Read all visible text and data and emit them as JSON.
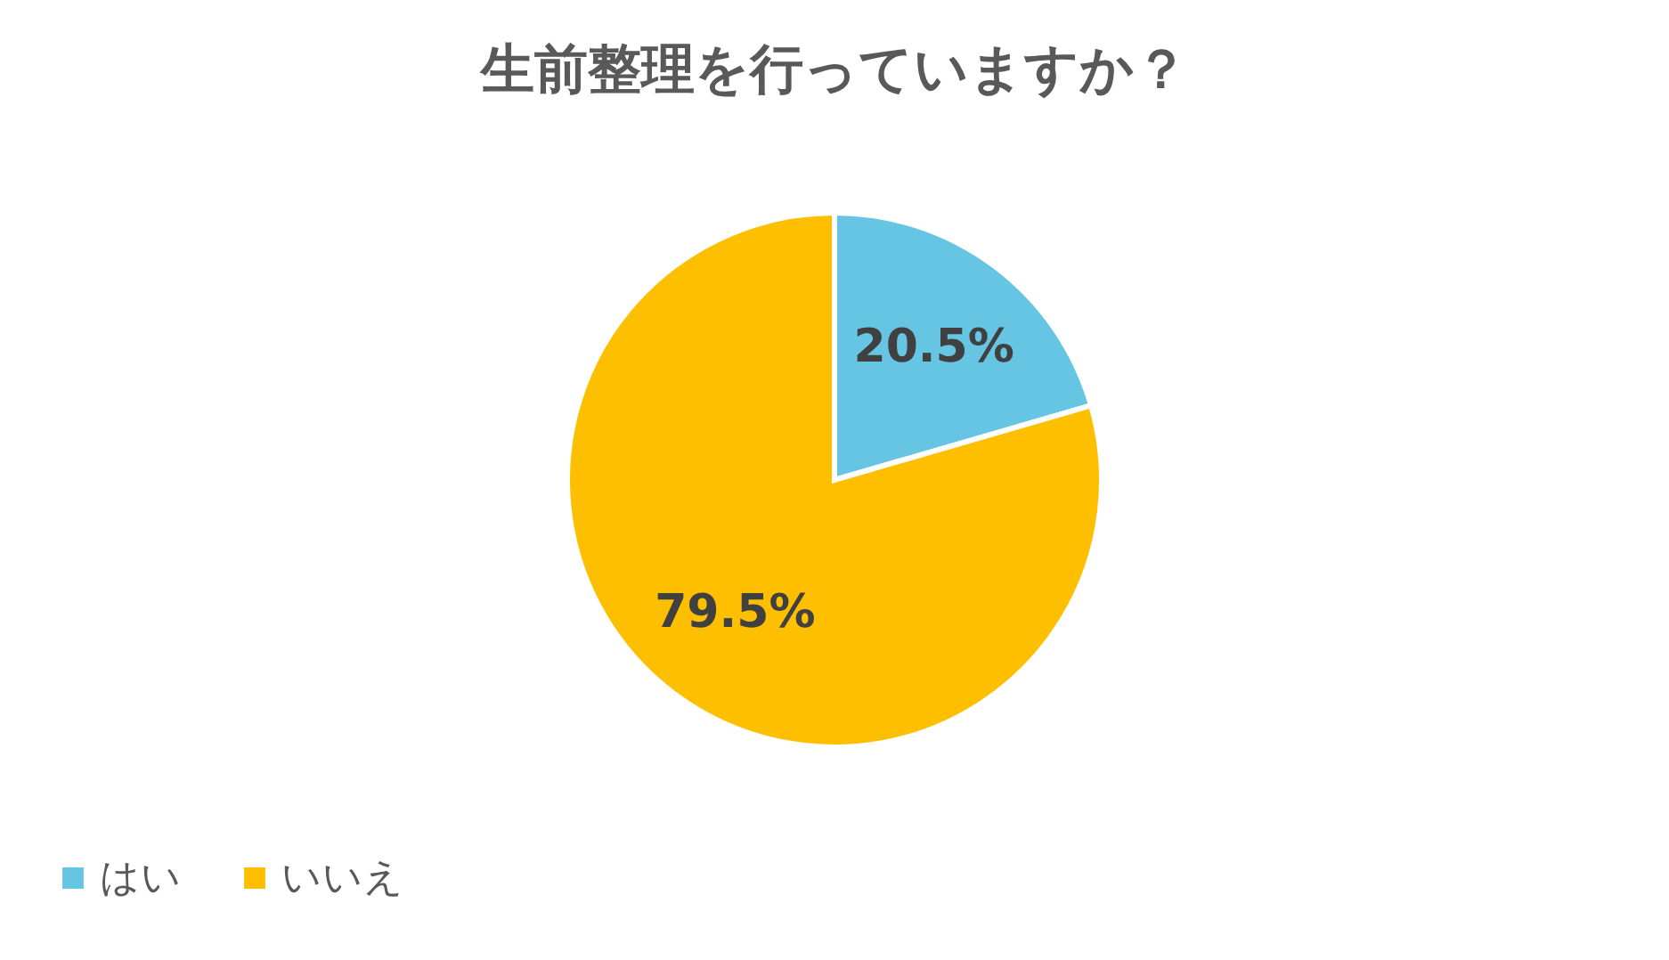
{
  "chart_data": {
    "type": "pie",
    "title": "生前整理を行っていますか？",
    "categories": [
      "はい",
      "いいえ"
    ],
    "values": [
      20.5,
      79.5
    ],
    "colors": [
      "#65c5e2",
      "#fdbf00"
    ],
    "value_labels": [
      "20.5%",
      "79.5%"
    ],
    "legend": "bottom"
  }
}
